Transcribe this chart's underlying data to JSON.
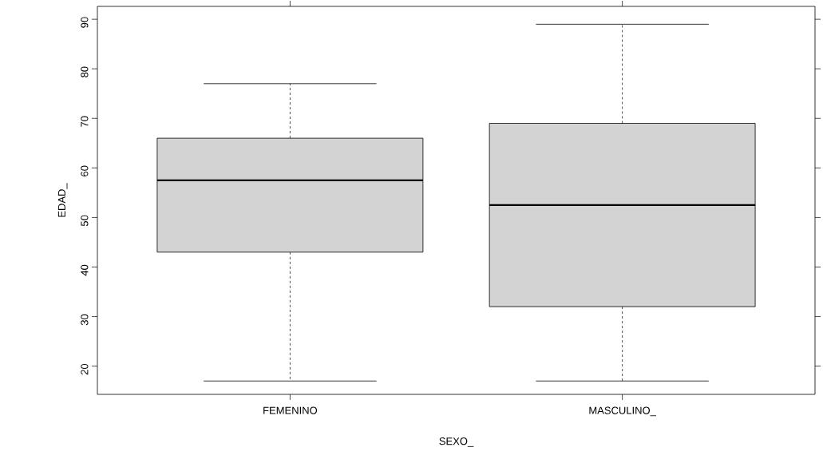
{
  "chart_data": {
    "type": "box",
    "xlabel": "SEXO_",
    "ylabel": "EDAD_",
    "categories": [
      "FEMENINO",
      "MASCULINO_"
    ],
    "boxes": [
      {
        "low": 17,
        "q1": 43,
        "median": 57.5,
        "q3": 66,
        "high": 77
      },
      {
        "low": 17,
        "q1": 32,
        "median": 52.5,
        "q3": 69,
        "high": 89
      }
    ],
    "color": "#d3d3d3",
    "ylim": [
      14.3,
      92.6
    ],
    "yticks": [
      20,
      30,
      40,
      50,
      60,
      70,
      80,
      90
    ],
    "grid": false
  }
}
